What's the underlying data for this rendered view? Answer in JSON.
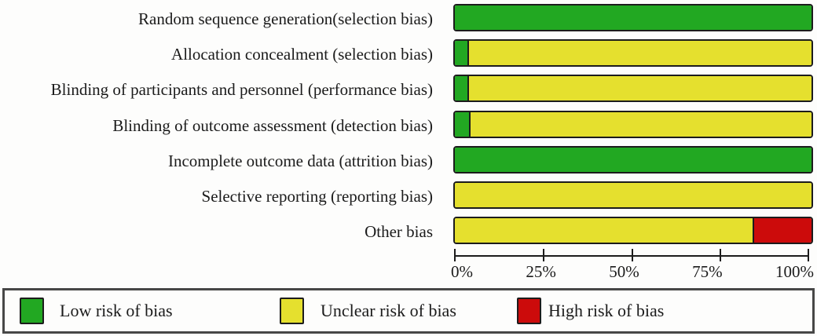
{
  "chart_data": {
    "type": "bar",
    "orientation": "horizontal",
    "stacked": true,
    "title": "",
    "xlabel": "",
    "ylabel": "",
    "xlim": [
      0,
      100
    ],
    "x_ticks": [
      "0%",
      "25%",
      "50%",
      "75%",
      "100%"
    ],
    "grid": false,
    "legend_position": "bottom",
    "categories": [
      "Random sequence generation(selection bias)",
      "Allocation concealment (selection bias)",
      "Blinding of participants and personnel (performance bias)",
      "Blinding of outcome assessment (detection bias)",
      "Incomplete outcome data (attrition bias)",
      "Selective reporting (reporting bias)",
      "Other bias"
    ],
    "series": [
      {
        "name": "Low risk of bias",
        "color": "#22a822",
        "values": [
          100,
          3.5,
          3.5,
          4,
          100,
          0,
          0
        ]
      },
      {
        "name": "Unclear risk of bias",
        "color": "#e5e02e",
        "values": [
          0,
          96.5,
          96.5,
          96,
          0,
          100,
          83.5
        ]
      },
      {
        "name": "High risk of bias",
        "color": "#cc0b0b",
        "values": [
          0,
          0,
          0,
          0,
          0,
          0,
          16.5
        ]
      }
    ]
  },
  "legend": {
    "items": [
      {
        "label": "Low risk of bias",
        "color": "#22a822"
      },
      {
        "label": "Unclear risk of bias",
        "color": "#e5e02e"
      },
      {
        "label": "High risk of bias",
        "color": "#cc0b0b"
      }
    ]
  },
  "colors": {
    "low_risk": "#22a822",
    "unclear_risk": "#e5e02e",
    "high_risk": "#cc0b0b",
    "bar_border": "#1c1c1c",
    "axis": "#1c1c1c",
    "legend_border": "#474747",
    "background": "#fdfdfc",
    "text": "#1b1b1b"
  }
}
